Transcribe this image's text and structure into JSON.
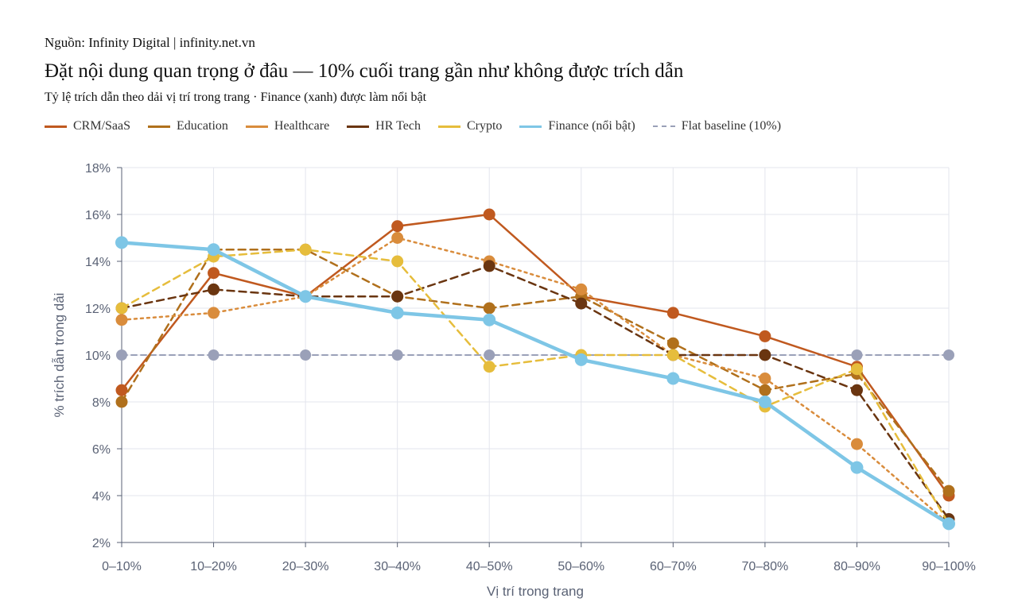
{
  "header": {
    "source": "Nguồn: Infinity Digital | infinity.net.vn",
    "title": "Đặt nội dung quan trọng ở đâu — 10% cuối trang gần như không được trích dẫn",
    "subtitle": "Tỷ lệ trích dẫn theo dải vị trí trong trang · Finance (xanh) được làm nổi bật"
  },
  "chart_data": {
    "type": "line",
    "xlabel": "Vị trí trong trang",
    "ylabel": "% trích dẫn trong dải",
    "categories": [
      "0–10%",
      "10–20%",
      "20–30%",
      "30–40%",
      "40–50%",
      "50–60%",
      "60–70%",
      "70–80%",
      "80–90%",
      "90–100%"
    ],
    "ylim": [
      2,
      18
    ],
    "yticks": [
      2,
      4,
      6,
      8,
      10,
      12,
      14,
      16,
      18
    ],
    "ytick_labels": [
      "2%",
      "4%",
      "6%",
      "8%",
      "10%",
      "12%",
      "14%",
      "16%",
      "18%"
    ],
    "grid": true,
    "legend_position": "top-left",
    "series": [
      {
        "name": "CRM/SaaS",
        "color": "#c0591f",
        "style": "solid",
        "values": [
          8.5,
          13.5,
          12.5,
          15.5,
          16.0,
          12.5,
          11.8,
          10.8,
          9.5,
          4.0
        ]
      },
      {
        "name": "Education",
        "color": "#b0701c",
        "style": "dashed",
        "values": [
          8.0,
          14.5,
          14.5,
          12.5,
          12.0,
          12.5,
          10.5,
          8.5,
          9.2,
          4.2
        ]
      },
      {
        "name": "Healthcare",
        "color": "#d98c3c",
        "style": "dotted",
        "values": [
          11.5,
          11.8,
          12.5,
          15.0,
          14.0,
          12.8,
          10.0,
          9.0,
          6.2,
          2.8
        ]
      },
      {
        "name": "HR Tech",
        "color": "#6a3510",
        "style": "dashed",
        "values": [
          12.0,
          12.8,
          12.5,
          12.5,
          13.8,
          12.2,
          10.0,
          10.0,
          8.5,
          3.0
        ]
      },
      {
        "name": "Crypto",
        "color": "#e6bd3c",
        "style": "dashed",
        "values": [
          12.0,
          14.2,
          14.5,
          14.0,
          9.5,
          10.0,
          10.0,
          7.8,
          9.4,
          2.8
        ]
      },
      {
        "name": "Finance (nổi bật)",
        "color": "#7ec6e6",
        "style": "solid-thick",
        "values": [
          14.8,
          14.5,
          12.5,
          11.8,
          11.5,
          9.8,
          9.0,
          8.0,
          5.2,
          2.8
        ]
      },
      {
        "name": "Flat baseline (10%)",
        "color": "#9aa0b8",
        "style": "baseline",
        "values": [
          10,
          10,
          10,
          10,
          10,
          10,
          10,
          10,
          10,
          10
        ]
      }
    ]
  }
}
